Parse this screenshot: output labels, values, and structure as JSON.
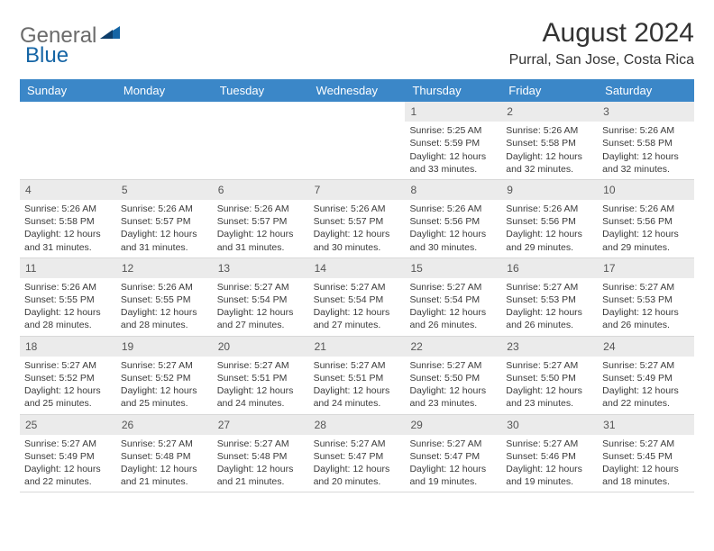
{
  "logo": {
    "general": "General",
    "blue": "Blue"
  },
  "title": "August 2024",
  "location": "Purral, San Jose, Costa Rica",
  "colors": {
    "header_bg": "#3b87c8",
    "header_text": "#ffffff",
    "daynum_bg": "#ebebeb",
    "logo_gray": "#6b6b6b",
    "logo_blue": "#1565a5",
    "text": "#3a3a3a",
    "border": "#d8d8d8"
  },
  "typography": {
    "title_fontsize": 30,
    "location_fontsize": 16,
    "header_fontsize": 13,
    "cell_fontsize": 10.5,
    "daynum_fontsize": 12
  },
  "days_of_week": [
    "Sunday",
    "Monday",
    "Tuesday",
    "Wednesday",
    "Thursday",
    "Friday",
    "Saturday"
  ],
  "weeks": [
    [
      null,
      null,
      null,
      null,
      {
        "n": "1",
        "sr": "5:25 AM",
        "ss": "5:59 PM",
        "dl": "12 hours and 33 minutes."
      },
      {
        "n": "2",
        "sr": "5:26 AM",
        "ss": "5:58 PM",
        "dl": "12 hours and 32 minutes."
      },
      {
        "n": "3",
        "sr": "5:26 AM",
        "ss": "5:58 PM",
        "dl": "12 hours and 32 minutes."
      }
    ],
    [
      {
        "n": "4",
        "sr": "5:26 AM",
        "ss": "5:58 PM",
        "dl": "12 hours and 31 minutes."
      },
      {
        "n": "5",
        "sr": "5:26 AM",
        "ss": "5:57 PM",
        "dl": "12 hours and 31 minutes."
      },
      {
        "n": "6",
        "sr": "5:26 AM",
        "ss": "5:57 PM",
        "dl": "12 hours and 31 minutes."
      },
      {
        "n": "7",
        "sr": "5:26 AM",
        "ss": "5:57 PM",
        "dl": "12 hours and 30 minutes."
      },
      {
        "n": "8",
        "sr": "5:26 AM",
        "ss": "5:56 PM",
        "dl": "12 hours and 30 minutes."
      },
      {
        "n": "9",
        "sr": "5:26 AM",
        "ss": "5:56 PM",
        "dl": "12 hours and 29 minutes."
      },
      {
        "n": "10",
        "sr": "5:26 AM",
        "ss": "5:56 PM",
        "dl": "12 hours and 29 minutes."
      }
    ],
    [
      {
        "n": "11",
        "sr": "5:26 AM",
        "ss": "5:55 PM",
        "dl": "12 hours and 28 minutes."
      },
      {
        "n": "12",
        "sr": "5:26 AM",
        "ss": "5:55 PM",
        "dl": "12 hours and 28 minutes."
      },
      {
        "n": "13",
        "sr": "5:27 AM",
        "ss": "5:54 PM",
        "dl": "12 hours and 27 minutes."
      },
      {
        "n": "14",
        "sr": "5:27 AM",
        "ss": "5:54 PM",
        "dl": "12 hours and 27 minutes."
      },
      {
        "n": "15",
        "sr": "5:27 AM",
        "ss": "5:54 PM",
        "dl": "12 hours and 26 minutes."
      },
      {
        "n": "16",
        "sr": "5:27 AM",
        "ss": "5:53 PM",
        "dl": "12 hours and 26 minutes."
      },
      {
        "n": "17",
        "sr": "5:27 AM",
        "ss": "5:53 PM",
        "dl": "12 hours and 26 minutes."
      }
    ],
    [
      {
        "n": "18",
        "sr": "5:27 AM",
        "ss": "5:52 PM",
        "dl": "12 hours and 25 minutes."
      },
      {
        "n": "19",
        "sr": "5:27 AM",
        "ss": "5:52 PM",
        "dl": "12 hours and 25 minutes."
      },
      {
        "n": "20",
        "sr": "5:27 AM",
        "ss": "5:51 PM",
        "dl": "12 hours and 24 minutes."
      },
      {
        "n": "21",
        "sr": "5:27 AM",
        "ss": "5:51 PM",
        "dl": "12 hours and 24 minutes."
      },
      {
        "n": "22",
        "sr": "5:27 AM",
        "ss": "5:50 PM",
        "dl": "12 hours and 23 minutes."
      },
      {
        "n": "23",
        "sr": "5:27 AM",
        "ss": "5:50 PM",
        "dl": "12 hours and 23 minutes."
      },
      {
        "n": "24",
        "sr": "5:27 AM",
        "ss": "5:49 PM",
        "dl": "12 hours and 22 minutes."
      }
    ],
    [
      {
        "n": "25",
        "sr": "5:27 AM",
        "ss": "5:49 PM",
        "dl": "12 hours and 22 minutes."
      },
      {
        "n": "26",
        "sr": "5:27 AM",
        "ss": "5:48 PM",
        "dl": "12 hours and 21 minutes."
      },
      {
        "n": "27",
        "sr": "5:27 AM",
        "ss": "5:48 PM",
        "dl": "12 hours and 21 minutes."
      },
      {
        "n": "28",
        "sr": "5:27 AM",
        "ss": "5:47 PM",
        "dl": "12 hours and 20 minutes."
      },
      {
        "n": "29",
        "sr": "5:27 AM",
        "ss": "5:47 PM",
        "dl": "12 hours and 19 minutes."
      },
      {
        "n": "30",
        "sr": "5:27 AM",
        "ss": "5:46 PM",
        "dl": "12 hours and 19 minutes."
      },
      {
        "n": "31",
        "sr": "5:27 AM",
        "ss": "5:45 PM",
        "dl": "12 hours and 18 minutes."
      }
    ]
  ],
  "labels": {
    "sunrise": "Sunrise:",
    "sunset": "Sunset:",
    "daylight": "Daylight:"
  }
}
